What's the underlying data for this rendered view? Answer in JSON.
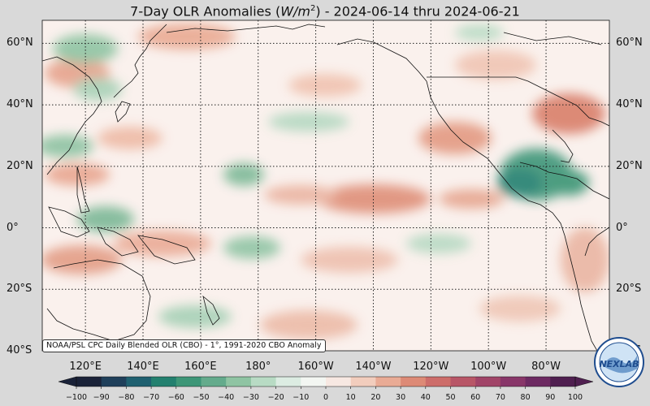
{
  "title": "7-Day OLR Anomalies (W/m²) - 2024-06-14 thru 2024-06-21",
  "title_parts": {
    "prefix": "7-Day OLR Anomalies (",
    "unit_var": "W/m",
    "unit_exp": "2",
    "suffix": ") - 2024-06-14 thru 2024-06-21"
  },
  "lat_labels": [
    "60°N",
    "40°N",
    "20°N",
    "0°",
    "20°S",
    "40°S"
  ],
  "lat_values": [
    60,
    40,
    20,
    0,
    -20,
    -40
  ],
  "lon_labels": [
    "120°E",
    "140°E",
    "160°E",
    "180°",
    "160°W",
    "140°W",
    "120°W",
    "100°W",
    "80°W"
  ],
  "lon_values": [
    120,
    140,
    160,
    180,
    200,
    220,
    240,
    260,
    280
  ],
  "credit": "NOAA/PSL CPC Daily Blended OLR (CBO) - 1°, 1991-2020 CBO Anomaly",
  "colorbar": {
    "ticks": [
      "−100",
      "−90",
      "−80",
      "−70",
      "−60",
      "−50",
      "−40",
      "−30",
      "−20",
      "−10",
      "0",
      "10",
      "20",
      "30",
      "40",
      "50",
      "60",
      "70",
      "80",
      "90",
      "100"
    ],
    "min": -100,
    "max": 100,
    "colors": [
      "#1a2238",
      "#1f3f5a",
      "#1f6070",
      "#23806f",
      "#3d9677",
      "#64ab8c",
      "#8fc4a3",
      "#b8dbc4",
      "#dcece2",
      "#f3f6f2",
      "#f7e8e2",
      "#f2cdbd",
      "#e9ab95",
      "#dd8a76",
      "#cd6d6a",
      "#b85667",
      "#a14468",
      "#883669",
      "#6d2a62",
      "#4f1f50"
    ]
  },
  "logo_text": "NEXLAB",
  "colors": {
    "background": "#d9d9d9",
    "land_line": "#111111",
    "grid": "#222222"
  }
}
